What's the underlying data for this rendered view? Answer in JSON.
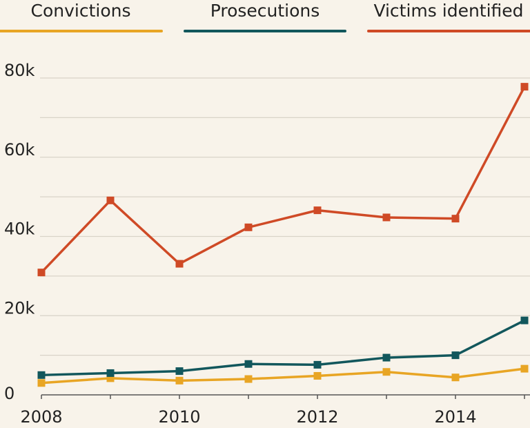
{
  "chart_data": {
    "type": "line",
    "title": "",
    "xlabel": "",
    "ylabel": "",
    "x": [
      2008,
      2009,
      2010,
      2011,
      2012,
      2013,
      2014,
      2015
    ],
    "x_tick_labels": [
      "2008",
      "2010",
      "2012",
      "2014"
    ],
    "y_tick_labels": [
      "0",
      "20k",
      "40k",
      "60k",
      "80k"
    ],
    "ylim": [
      0,
      80000
    ],
    "grid": true,
    "legend_position": "top",
    "series": [
      {
        "name": "Convictions",
        "color": "#e8a524",
        "values": [
          3000,
          4200,
          3600,
          4000,
          4800,
          5800,
          4400,
          6600
        ]
      },
      {
        "name": "Prosecutions",
        "color": "#12575c",
        "values": [
          5000,
          5500,
          6000,
          7800,
          7600,
          9400,
          10000,
          18800
        ]
      },
      {
        "name": "Victims identified",
        "color": "#cf4a26",
        "values": [
          30900,
          49100,
          33100,
          42300,
          46600,
          44800,
          44500,
          77800
        ]
      }
    ]
  }
}
